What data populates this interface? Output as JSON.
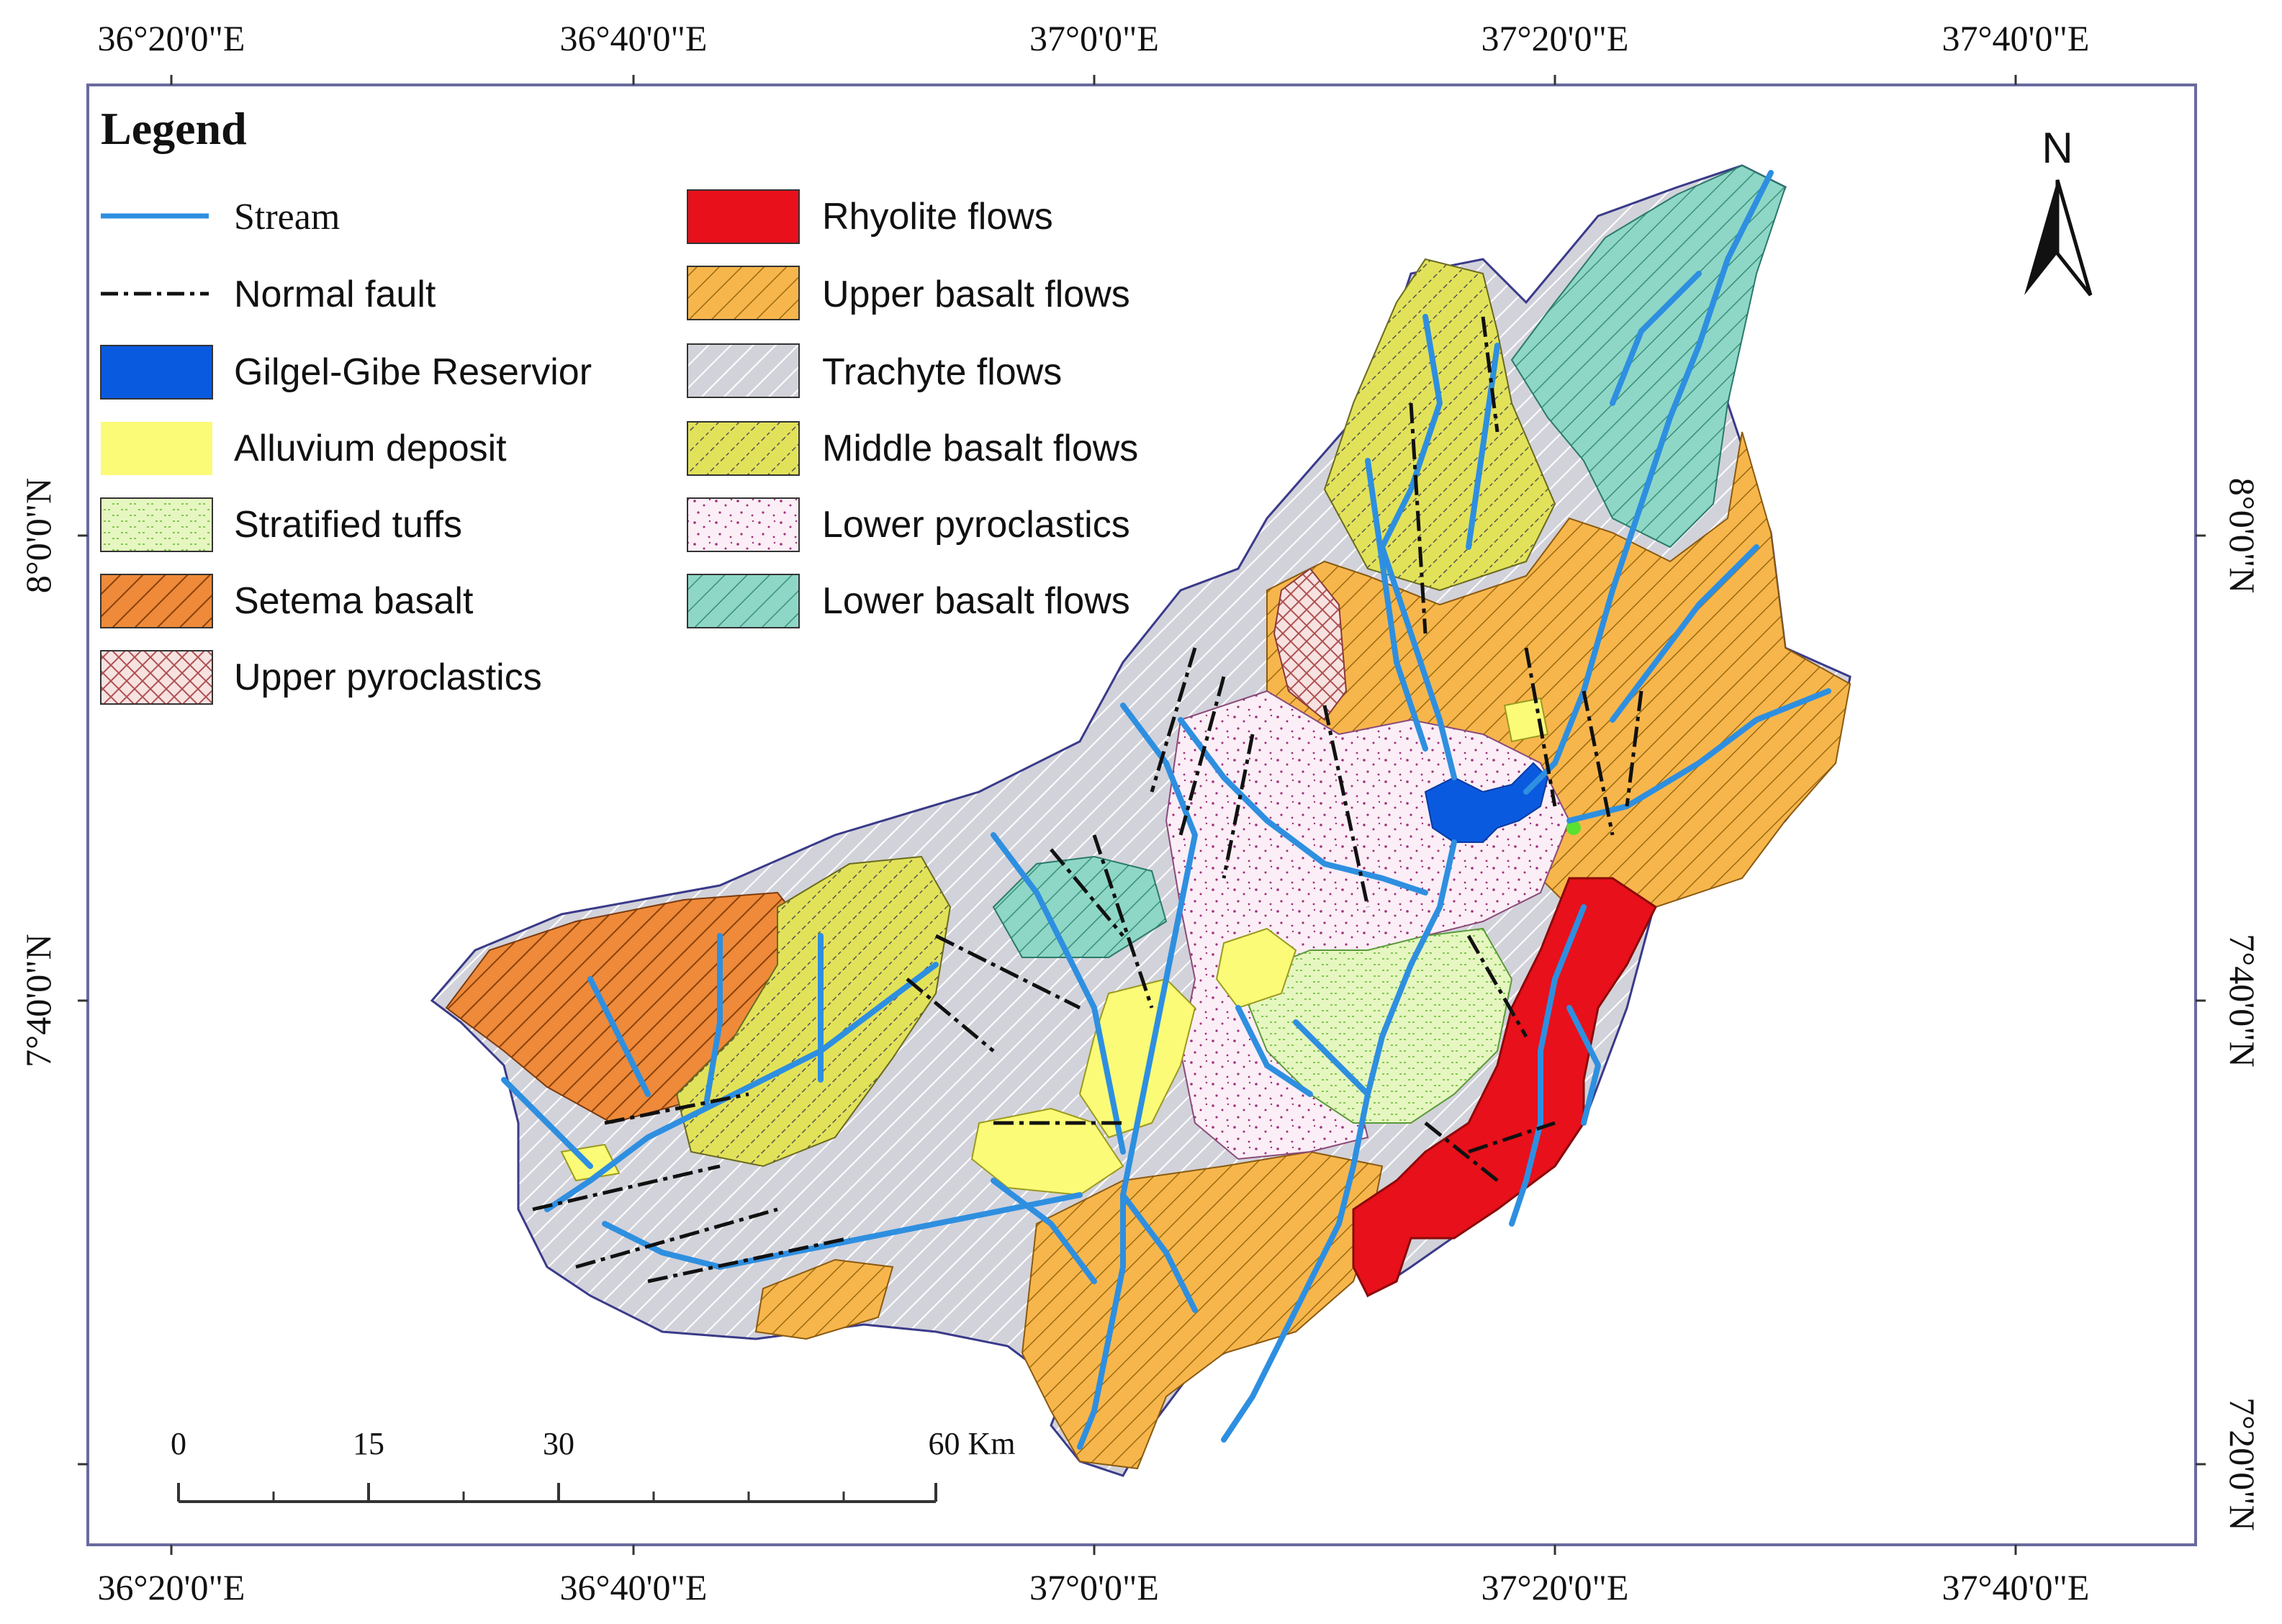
{
  "map": {
    "top_ticks": [
      "36°20'0\"E",
      "36°40'0\"E",
      "37°0'0\"E",
      "37°20'0\"E",
      "37°40'0\"E"
    ],
    "bottom_ticks": [
      "36°20'0\"E",
      "36°40'0\"E",
      "37°0'0\"E",
      "37°20'0\"E",
      "37°40'0\"E"
    ],
    "left_ticks": [
      "8°0'0\"N",
      "7°40'0\"N"
    ],
    "right_ticks": [
      "8°0'0\"N",
      "7°40'0\"N",
      "7°20'0\"N"
    ],
    "north_label": "N"
  },
  "legend": {
    "title": "Legend",
    "items": [
      {
        "label": "Stream",
        "icon": "stream-line-icon",
        "color": "#2e8fe0"
      },
      {
        "label": "Normal fault",
        "icon": "fault-line-icon",
        "color": "#111111"
      },
      {
        "label": "Gilgel-Gibe Reservior",
        "icon": "reservoir-swatch",
        "color": "#0a5ae0"
      },
      {
        "label": "Alluvium deposit",
        "icon": "alluvium-swatch",
        "color": "#fbfb78"
      },
      {
        "label": "Stratified tuffs",
        "icon": "tuffs-swatch",
        "color": "#e6f6c0"
      },
      {
        "label": "Setema basalt",
        "icon": "setema-swatch",
        "color": "#ee8a3a"
      },
      {
        "label": "Upper pyroclastics",
        "icon": "upper-pyro-swatch",
        "color": "#f2d6d6"
      },
      {
        "label": "Rhyolite flows",
        "icon": "rhyolite-swatch",
        "color": "#e8101a"
      },
      {
        "label": "Upper basalt flows",
        "icon": "upper-basalt-swatch",
        "color": "#f7b64c"
      },
      {
        "label": "Trachyte flows",
        "icon": "trachyte-swatch",
        "color": "#d2d2da"
      },
      {
        "label": "Middle basalt flows",
        "icon": "middle-basalt-swatch",
        "color": "#e0e060"
      },
      {
        "label": "Lower pyroclastics",
        "icon": "lower-pyro-swatch",
        "color": "#fbeef6"
      },
      {
        "label": "Lower basalt flows",
        "icon": "lower-basalt-swatch",
        "color": "#8ed7c6"
      }
    ]
  },
  "scale_bar": {
    "labels": [
      "0",
      "15",
      "30",
      "60 Km"
    ]
  }
}
